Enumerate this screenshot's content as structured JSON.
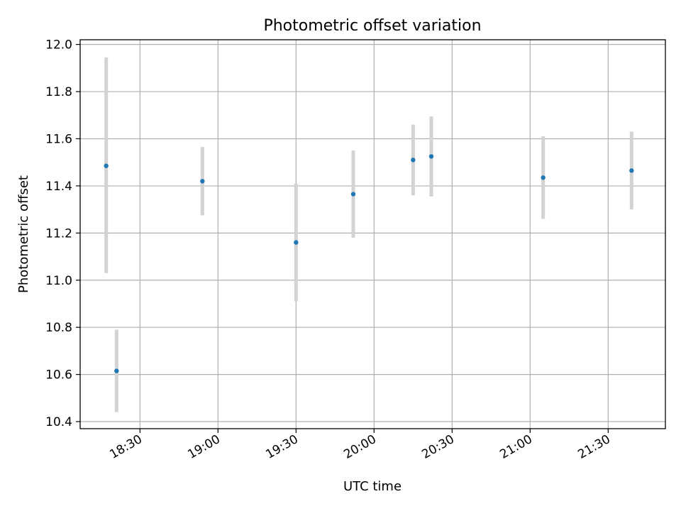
{
  "chart_data": {
    "type": "scatter",
    "title": "Photometric offset variation",
    "xlabel": "UTC time",
    "ylabel": "Photometric offset",
    "x_axis": {
      "kind": "time",
      "range": [
        "18:07",
        "21:52"
      ],
      "ticks": [
        "18:30",
        "19:00",
        "19:30",
        "20:00",
        "20:30",
        "21:00",
        "21:30"
      ]
    },
    "y_axis": {
      "range": [
        10.37,
        12.02
      ],
      "ticks": [
        "10.4",
        "10.6",
        "10.8",
        "11.0",
        "11.2",
        "11.4",
        "11.6",
        "11.8",
        "12.0"
      ]
    },
    "grid": true,
    "series": [
      {
        "marker_color": "#1f77b4",
        "error_bar_color": "#d3d3d3",
        "points": [
          {
            "x": "18:17",
            "y": 11.485,
            "ylow": 11.03,
            "yhigh": 11.945
          },
          {
            "x": "18:21",
            "y": 10.615,
            "ylow": 10.44,
            "yhigh": 10.79
          },
          {
            "x": "18:54",
            "y": 11.42,
            "ylow": 11.275,
            "yhigh": 11.565
          },
          {
            "x": "19:30",
            "y": 11.16,
            "ylow": 10.91,
            "yhigh": 11.41
          },
          {
            "x": "19:52",
            "y": 11.365,
            "ylow": 11.18,
            "yhigh": 11.55
          },
          {
            "x": "20:15",
            "y": 11.51,
            "ylow": 11.36,
            "yhigh": 11.66
          },
          {
            "x": "20:22",
            "y": 11.525,
            "ylow": 11.355,
            "yhigh": 11.695
          },
          {
            "x": "21:05",
            "y": 11.435,
            "ylow": 11.26,
            "yhigh": 11.61
          },
          {
            "x": "21:39",
            "y": 11.465,
            "ylow": 11.3,
            "yhigh": 11.63
          }
        ]
      }
    ]
  }
}
